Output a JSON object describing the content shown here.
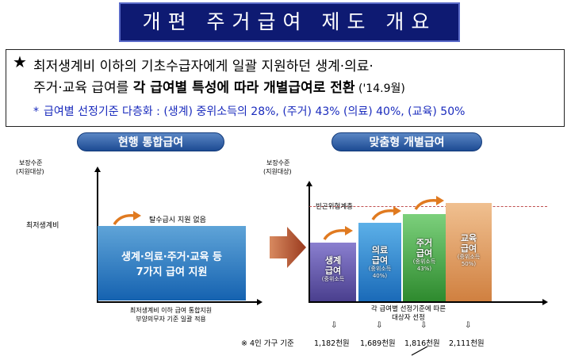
{
  "title": "개편 주거급여 제도 개요",
  "summary": {
    "star": "★",
    "line1": "최저생계비 이하의 기초수급자에게 일괄 지원하던 생계·의료·",
    "line2_prefix": "주거·교육 급여를 ",
    "line2_bold": "각 급여별 특성에 따라 개별급여로 전환",
    "line2_date": " ('14.9월)",
    "line3_bullet": "*",
    "line3": "급여별 선정기준 다층화 : (생계) 중위소득의 28%, (주거) 43% (의료) 40%, (교육) 50%"
  },
  "left_panel": {
    "banner": "현행 통합급여",
    "y_axis_label_1": "보장수준",
    "y_axis_label_2": "(지원대상)",
    "minimum_cost_label": "최저생계비",
    "no_exit_note": "탈수급시 지원 없음",
    "block_line1": "생계·의료·주거·교육 등",
    "block_line2": "7가지 급여 지원",
    "caption_line1": "최저생계비 이하 급여 통합지원",
    "caption_line2": "부양의무자 기준 일괄 적용"
  },
  "right_panel": {
    "banner": "맞춤형 개별급여",
    "y_axis_label_1": "보장수준",
    "y_axis_label_2": "(지원대상)",
    "poverty_label": "빈곤위험계층",
    "caption_line1": "각 급여별 선정기준에 따른",
    "caption_line2": "대상자 선정",
    "bars": [
      {
        "name": "생계",
        "label1": "생계",
        "label2": "급여",
        "sub": "(중위소득",
        "pct": "28%)"
      },
      {
        "name": "의료",
        "label1": "의료",
        "label2": "급여",
        "sub": "(중위소득",
        "pct": "40%)"
      },
      {
        "name": "주거",
        "label1": "주거",
        "label2": "급여",
        "sub": "(중위소득",
        "pct": "43%)"
      },
      {
        "name": "교육",
        "label1": "교육",
        "label2": "급여",
        "sub": "(중위소득",
        "pct": "50%)"
      }
    ]
  },
  "footer": {
    "note": "※ 4인 가구 기준",
    "arrow_glyph": "⇩",
    "amounts": [
      "1,182천원",
      "1,689천원",
      "1,816천원",
      "2,111천원"
    ]
  },
  "colors": {
    "title_bg": "#0e1a72",
    "banner": "#1d4b93",
    "block_blue": "#1562b0",
    "bar_purple": "#5a4f9e",
    "bar_blue": "#2a7ac0",
    "bar_green": "#4aa04a",
    "bar_orange": "#e0a060",
    "arrow_orange": "#e07a20",
    "transition_arrow": "#b04a28",
    "dashed_line": "#c05050",
    "line3_text": "#1a2bbd"
  }
}
